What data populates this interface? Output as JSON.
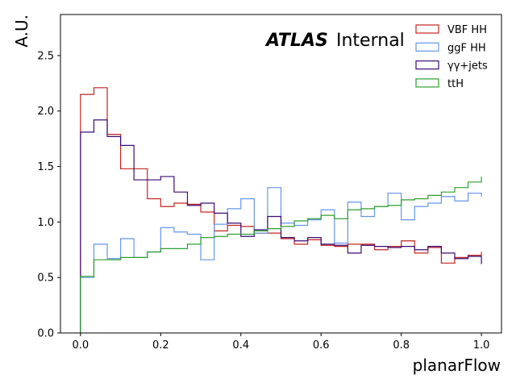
{
  "chart_data": {
    "type": "step-histogram",
    "xlabel": "planarFlow",
    "ylabel": "A.U.",
    "xlim": [
      -0.05,
      1.05
    ],
    "ylim": [
      0.0,
      2.87
    ],
    "xticks": [
      0.0,
      0.2,
      0.4,
      0.6,
      0.8,
      1.0
    ],
    "xtick_labels": [
      "0.0",
      "0.2",
      "0.4",
      "0.6",
      "0.8",
      "1.0"
    ],
    "yticks": [
      0.0,
      0.5,
      1.0,
      1.5,
      2.0,
      2.5
    ],
    "ytick_labels": [
      "0.0",
      "0.5",
      "1.0",
      "1.5",
      "2.0",
      "2.5"
    ],
    "annotation": {
      "bold": "ATLAS",
      "normal": "Internal"
    },
    "legend_position": "top-right",
    "bin_edges": [
      0.0,
      0.03333,
      0.06667,
      0.1,
      0.13333,
      0.16667,
      0.2,
      0.23333,
      0.26667,
      0.3,
      0.33333,
      0.36667,
      0.4,
      0.43333,
      0.46667,
      0.5,
      0.53333,
      0.56667,
      0.6,
      0.63333,
      0.66667,
      0.7,
      0.73333,
      0.76667,
      0.8,
      0.83333,
      0.86667,
      0.9,
      0.93333,
      0.96667,
      1.0
    ],
    "series": [
      {
        "name": "VBF HH",
        "color": "#c3241f",
        "values": [
          2.15,
          2.21,
          1.79,
          1.48,
          1.48,
          1.21,
          1.14,
          1.17,
          1.16,
          1.09,
          0.92,
          0.97,
          0.96,
          0.9,
          0.9,
          0.85,
          0.8,
          0.84,
          0.79,
          0.78,
          0.8,
          0.8,
          0.75,
          0.78,
          0.83,
          0.72,
          0.77,
          0.63,
          0.68,
          0.7,
          0.73
        ]
      },
      {
        "name": "ggF HH",
        "color": "#6495ed",
        "values": [
          0.5,
          0.8,
          0.67,
          0.85,
          0.68,
          0.73,
          0.95,
          0.91,
          0.89,
          0.66,
          0.98,
          1.12,
          1.21,
          0.9,
          1.31,
          0.99,
          0.97,
          1.02,
          1.11,
          0.81,
          1.18,
          1.05,
          1.14,
          1.26,
          1.02,
          1.14,
          1.17,
          1.23,
          1.19,
          1.26,
          1.23
        ]
      },
      {
        "name": "γγ+jets",
        "color": "#3b0a78",
        "values": [
          1.81,
          1.92,
          1.77,
          1.69,
          1.38,
          1.38,
          1.41,
          1.27,
          1.15,
          1.17,
          1.08,
          0.99,
          0.87,
          0.93,
          1.05,
          0.86,
          0.83,
          0.86,
          0.8,
          0.79,
          0.72,
          0.79,
          0.78,
          0.77,
          0.78,
          0.75,
          0.78,
          0.72,
          0.67,
          0.69,
          0.62
        ]
      },
      {
        "name": "ttH",
        "color": "#2ca02c",
        "values": [
          0.51,
          0.66,
          0.66,
          0.68,
          0.68,
          0.73,
          0.76,
          0.76,
          0.8,
          0.86,
          0.87,
          0.89,
          0.89,
          0.92,
          0.94,
          0.96,
          1.01,
          1.03,
          1.06,
          1.03,
          1.11,
          1.12,
          1.14,
          1.15,
          1.2,
          1.21,
          1.24,
          1.27,
          1.31,
          1.36,
          1.41
        ]
      }
    ]
  }
}
